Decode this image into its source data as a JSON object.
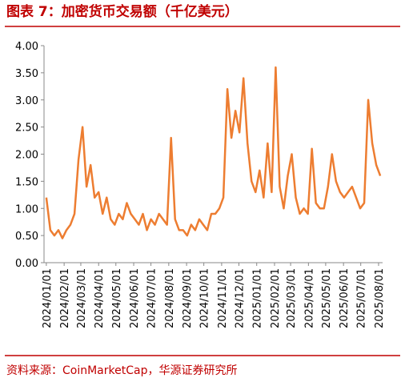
{
  "chart_data": {
    "type": "line",
    "title": "图表 7：加密货币交易额（千亿美元）",
    "source": "资料来源：CoinMarketCap，华源证券研究所",
    "x": [
      "2024/01/01",
      "2024/01/08",
      "2024/01/15",
      "2024/01/22",
      "2024/01/29",
      "2024/02/05",
      "2024/02/12",
      "2024/02/19",
      "2024/02/26",
      "2024/03/04",
      "2024/03/11",
      "2024/03/18",
      "2024/03/25",
      "2024/04/01",
      "2024/04/08",
      "2024/04/15",
      "2024/04/22",
      "2024/04/29",
      "2024/05/06",
      "2024/05/13",
      "2024/05/20",
      "2024/05/27",
      "2024/06/03",
      "2024/06/10",
      "2024/06/17",
      "2024/06/24",
      "2024/07/01",
      "2024/07/08",
      "2024/07/15",
      "2024/07/22",
      "2024/07/29",
      "2024/08/05",
      "2024/08/12",
      "2024/08/19",
      "2024/08/26",
      "2024/09/02",
      "2024/09/09",
      "2024/09/16",
      "2024/09/23",
      "2024/09/30",
      "2024/10/07",
      "2024/10/14",
      "2024/10/21",
      "2024/10/28",
      "2024/11/04",
      "2024/11/11",
      "2024/11/18",
      "2024/11/25",
      "2024/12/02",
      "2024/12/09",
      "2024/12/16",
      "2024/12/23",
      "2024/12/30",
      "2025/01/06",
      "2025/01/13",
      "2025/01/20",
      "2025/01/27",
      "2025/02/03",
      "2025/02/10",
      "2025/02/17",
      "2025/02/24",
      "2025/03/03",
      "2025/03/10",
      "2025/03/17",
      "2025/03/24",
      "2025/03/31",
      "2025/04/07",
      "2025/04/14",
      "2025/04/21",
      "2025/04/28",
      "2025/05/05",
      "2025/05/12",
      "2025/05/19",
      "2025/05/26",
      "2025/06/02",
      "2025/06/09",
      "2025/06/16",
      "2025/06/23",
      "2025/06/30",
      "2025/07/07",
      "2025/07/14",
      "2025/07/21",
      "2025/07/28",
      "2025/08/04"
    ],
    "series": [
      {
        "name": "加密货币交易额",
        "color": "#ed7d31",
        "values": [
          1.2,
          0.6,
          0.5,
          0.6,
          0.45,
          0.6,
          0.7,
          0.9,
          1.9,
          2.5,
          1.4,
          1.8,
          1.2,
          1.3,
          0.9,
          1.2,
          0.8,
          0.7,
          0.9,
          0.8,
          1.1,
          0.9,
          0.8,
          0.7,
          0.9,
          0.6,
          0.8,
          0.7,
          0.9,
          0.8,
          0.7,
          2.3,
          0.8,
          0.6,
          0.6,
          0.5,
          0.7,
          0.6,
          0.8,
          0.7,
          0.6,
          0.9,
          0.9,
          1.0,
          1.2,
          3.2,
          2.3,
          2.8,
          2.4,
          3.4,
          2.2,
          1.5,
          1.3,
          1.7,
          1.2,
          2.2,
          1.3,
          3.6,
          1.4,
          1.0,
          1.6,
          2.0,
          1.2,
          0.9,
          1.0,
          0.9,
          2.1,
          1.1,
          1.0,
          1.0,
          1.4,
          2.0,
          1.5,
          1.3,
          1.2,
          1.3,
          1.4,
          1.2,
          1.0,
          1.1,
          3.0,
          2.2,
          1.8,
          1.6
        ]
      }
    ],
    "xlim": [
      "2023/12/28",
      "2025/08/08"
    ],
    "xticks": [
      "2024/01/01",
      "2024/02/01",
      "2024/03/01",
      "2024/04/01",
      "2024/05/01",
      "2024/06/01",
      "2024/07/01",
      "2024/08/01",
      "2024/09/01",
      "2024/10/01",
      "2024/11/01",
      "2024/12/01",
      "2025/01/01",
      "2025/02/01",
      "2025/03/01",
      "2025/04/01",
      "2025/05/01",
      "2025/06/01",
      "2025/07/01",
      "2025/08/01"
    ],
    "ylim": [
      0,
      4
    ],
    "yticks": [
      {
        "value": 0,
        "label": "0.00"
      },
      {
        "value": 0.5,
        "label": "0.50"
      },
      {
        "value": 1,
        "label": "1.00"
      },
      {
        "value": 1.5,
        "label": "1.50"
      },
      {
        "value": 2,
        "label": "2.00"
      },
      {
        "value": 2.5,
        "label": "2.50"
      },
      {
        "value": 3,
        "label": "3.00"
      },
      {
        "value": 3.5,
        "label": "3.50"
      },
      {
        "value": 4,
        "label": "4.00"
      }
    ]
  }
}
